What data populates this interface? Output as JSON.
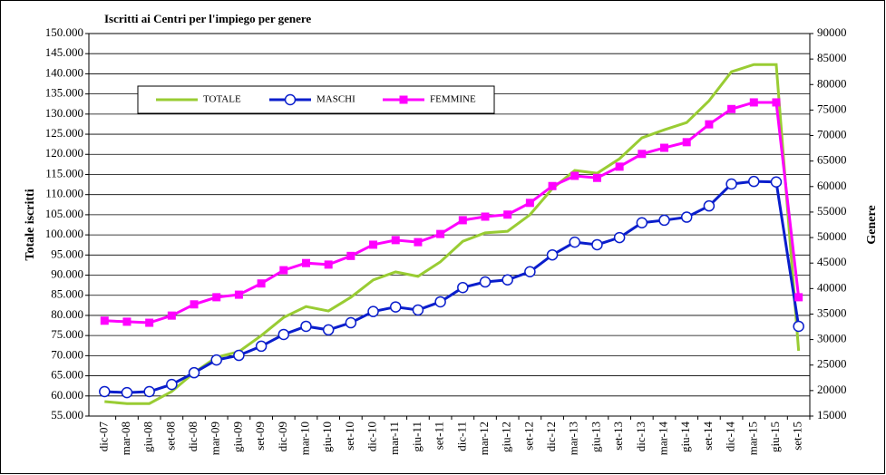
{
  "chart_data": {
    "type": "line",
    "title": "Iscritti ai Centri per l'impiego per genere",
    "ylabel": "Totale iscritti",
    "y2label": "Genere",
    "categories": [
      "dic-07",
      "mar-08",
      "giu-08",
      "set-08",
      "dic-08",
      "mar-09",
      "giu-09",
      "set-09",
      "dic-09",
      "mar-10",
      "giu-10",
      "set-10",
      "dic-10",
      "mar-11",
      "giu-11",
      "set-11",
      "dic-11",
      "mar-12",
      "giu-12",
      "set-12",
      "dic-12",
      "mar-13",
      "giu-13",
      "set-13",
      "dic-13",
      "mar-14",
      "giu-14",
      "set-14",
      "dic-14",
      "mar-15",
      "giu-15",
      "set-15"
    ],
    "series": [
      {
        "name": "TOTALE",
        "color": "#99cc33",
        "axis": "y",
        "values": [
          58600,
          58100,
          58100,
          61100,
          65800,
          69600,
          71000,
          75000,
          79500,
          82200,
          81100,
          84500,
          88800,
          90800,
          89700,
          93300,
          98400,
          100500,
          100900,
          105000,
          111500,
          116000,
          115300,
          118900,
          124100,
          126100,
          127900,
          133300,
          140500,
          142300,
          142300,
          71200
        ]
      },
      {
        "name": "MASCHI",
        "color": "#0a1ecc",
        "axis": "y2",
        "marker": "circle",
        "values": [
          19800,
          19600,
          19800,
          21200,
          23500,
          26000,
          26900,
          28700,
          31000,
          32600,
          31900,
          33300,
          35500,
          36400,
          35800,
          37400,
          40200,
          41300,
          41700,
          43300,
          46600,
          49100,
          48600,
          50000,
          52900,
          53400,
          54000,
          56200,
          60500,
          61000,
          60900,
          32600
        ]
      },
      {
        "name": "FEMMINE",
        "color": "#ff00ff",
        "axis": "y2",
        "marker": "square",
        "values": [
          33700,
          33500,
          33300,
          34700,
          36900,
          38300,
          38800,
          41000,
          43600,
          45000,
          44700,
          46400,
          48600,
          49500,
          49100,
          50700,
          53400,
          54100,
          54500,
          56800,
          60100,
          62100,
          61700,
          63900,
          66400,
          67600,
          68700,
          72200,
          75200,
          76500,
          76500,
          38300
        ]
      }
    ],
    "ylim": [
      55000,
      150000
    ],
    "yticks": [
      {
        "value": 55000,
        "label": "55.000"
      },
      {
        "value": 60000,
        "label": "60.000"
      },
      {
        "value": 65000,
        "label": "65.000"
      },
      {
        "value": 70000,
        "label": "70.000"
      },
      {
        "value": 75000,
        "label": "75.000"
      },
      {
        "value": 80000,
        "label": "80.000"
      },
      {
        "value": 85000,
        "label": "85.000"
      },
      {
        "value": 90000,
        "label": "90.000"
      },
      {
        "value": 95000,
        "label": "95.000"
      },
      {
        "value": 100000,
        "label": "100.000"
      },
      {
        "value": 105000,
        "label": "105.000"
      },
      {
        "value": 110000,
        "label": "110.000"
      },
      {
        "value": 115000,
        "label": "115.000"
      },
      {
        "value": 120000,
        "label": "120.000"
      },
      {
        "value": 125000,
        "label": "125.000"
      },
      {
        "value": 130000,
        "label": "130.000"
      },
      {
        "value": 135000,
        "label": "135.000"
      },
      {
        "value": 140000,
        "label": "140.000"
      },
      {
        "value": 145000,
        "label": "145.000"
      },
      {
        "value": 150000,
        "label": "150.000"
      }
    ],
    "y2lim": [
      15000,
      90000
    ],
    "y2ticks": [
      15000,
      20000,
      25000,
      30000,
      35000,
      40000,
      45000,
      50000,
      55000,
      60000,
      65000,
      70000,
      75000,
      80000,
      85000,
      90000
    ],
    "grid": true
  }
}
